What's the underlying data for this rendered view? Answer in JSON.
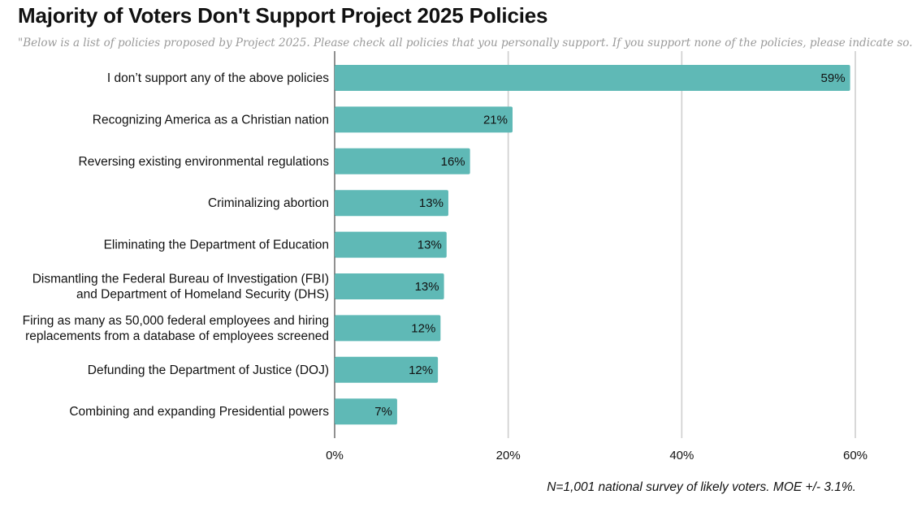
{
  "chart_data": {
    "type": "bar",
    "orientation": "horizontal",
    "title": "Majority of Voters Don't Support Project 2025 Policies",
    "subtitle": "\"Below is a list of policies proposed by Project 2025. Please check all policies that you personally support. If you support none of the policies, please indicate so.\"",
    "categories": [
      [
        "I don’t support any of the above policies"
      ],
      [
        "Recognizing America as a Christian nation"
      ],
      [
        "Reversing existing environmental regulations"
      ],
      [
        "Criminalizing abortion"
      ],
      [
        "Eliminating the Department of Education"
      ],
      [
        "Dismantling the Federal Bureau of Investigation (FBI)",
        "and Department of Homeland Security (DHS)"
      ],
      [
        "Firing as many as 50,000 federal employees and hiring",
        "replacements from a database of employees screened"
      ],
      [
        "Defunding the Department of Justice (DOJ)"
      ],
      [
        "Combining and expanding Presidential powers"
      ]
    ],
    "values": [
      59.4,
      20.5,
      15.6,
      13.1,
      12.9,
      12.6,
      12.2,
      11.9,
      7.2
    ],
    "value_labels": [
      "59%",
      "21%",
      "16%",
      "13%",
      "13%",
      "13%",
      "12%",
      "12%",
      "7%"
    ],
    "xlim": [
      0,
      60
    ],
    "xticks": [
      0,
      20,
      40,
      60
    ],
    "xtick_labels": [
      "0%",
      "20%",
      "40%",
      "60%"
    ],
    "grid": true,
    "bar_color": "#5fb9b6",
    "note": "N=1,001 national survey of likely voters. MOE +/- 3.1%."
  }
}
